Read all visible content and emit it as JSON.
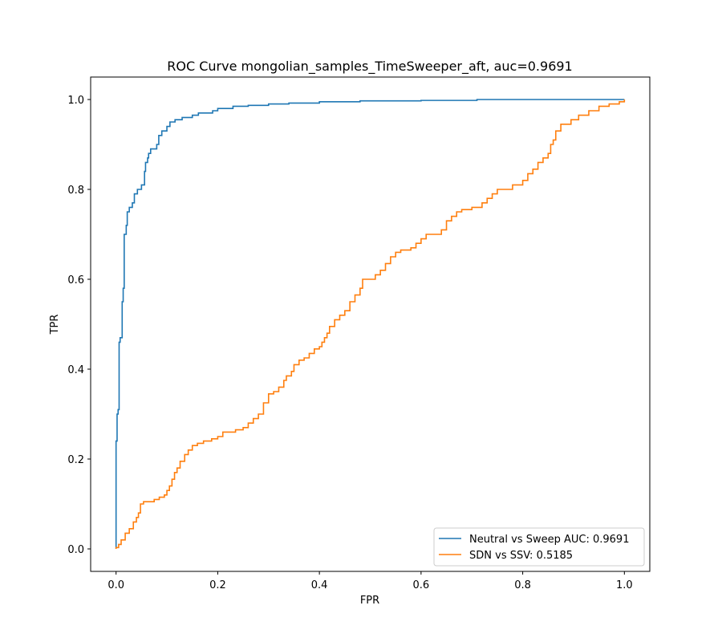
{
  "chart_data": {
    "type": "line",
    "title": "ROC Curve mongolian_samples_TimeSweeper_aft, auc=0.9691",
    "xlabel": "FPR",
    "ylabel": "TPR",
    "xlim": [
      -0.05,
      1.05
    ],
    "ylim": [
      -0.05,
      1.05
    ],
    "xticks": [
      0.0,
      0.2,
      0.4,
      0.6,
      0.8,
      1.0
    ],
    "yticks": [
      0.0,
      0.2,
      0.4,
      0.6,
      0.8,
      1.0
    ],
    "xtick_labels": [
      "0.0",
      "0.2",
      "0.4",
      "0.6",
      "0.8",
      "1.0"
    ],
    "ytick_labels": [
      "0.0",
      "0.2",
      "0.4",
      "0.6",
      "0.8",
      "1.0"
    ],
    "grid": false,
    "legend_position": "lower-right",
    "series": [
      {
        "name": "Neutral vs Sweep AUC: 0.9691",
        "color": "#1f77b4",
        "points": [
          [
            0.0,
            0.0
          ],
          [
            0.0,
            0.24
          ],
          [
            0.002,
            0.24
          ],
          [
            0.002,
            0.3
          ],
          [
            0.004,
            0.3
          ],
          [
            0.004,
            0.31
          ],
          [
            0.006,
            0.31
          ],
          [
            0.006,
            0.46
          ],
          [
            0.008,
            0.46
          ],
          [
            0.008,
            0.47
          ],
          [
            0.012,
            0.47
          ],
          [
            0.012,
            0.55
          ],
          [
            0.014,
            0.55
          ],
          [
            0.014,
            0.58
          ],
          [
            0.016,
            0.58
          ],
          [
            0.016,
            0.7
          ],
          [
            0.02,
            0.7
          ],
          [
            0.02,
            0.72
          ],
          [
            0.022,
            0.72
          ],
          [
            0.022,
            0.75
          ],
          [
            0.026,
            0.75
          ],
          [
            0.026,
            0.76
          ],
          [
            0.032,
            0.76
          ],
          [
            0.032,
            0.77
          ],
          [
            0.036,
            0.77
          ],
          [
            0.036,
            0.79
          ],
          [
            0.042,
            0.79
          ],
          [
            0.042,
            0.8
          ],
          [
            0.05,
            0.8
          ],
          [
            0.05,
            0.81
          ],
          [
            0.056,
            0.81
          ],
          [
            0.056,
            0.84
          ],
          [
            0.058,
            0.84
          ],
          [
            0.058,
            0.86
          ],
          [
            0.062,
            0.86
          ],
          [
            0.062,
            0.87
          ],
          [
            0.064,
            0.87
          ],
          [
            0.064,
            0.88
          ],
          [
            0.068,
            0.88
          ],
          [
            0.068,
            0.89
          ],
          [
            0.072,
            0.89
          ],
          [
            0.072,
            0.89
          ],
          [
            0.08,
            0.89
          ],
          [
            0.08,
            0.9
          ],
          [
            0.084,
            0.9
          ],
          [
            0.084,
            0.92
          ],
          [
            0.09,
            0.92
          ],
          [
            0.09,
            0.93
          ],
          [
            0.1,
            0.93
          ],
          [
            0.1,
            0.94
          ],
          [
            0.106,
            0.94
          ],
          [
            0.106,
            0.95
          ],
          [
            0.116,
            0.95
          ],
          [
            0.116,
            0.955
          ],
          [
            0.13,
            0.955
          ],
          [
            0.13,
            0.96
          ],
          [
            0.15,
            0.96
          ],
          [
            0.15,
            0.965
          ],
          [
            0.162,
            0.965
          ],
          [
            0.162,
            0.97
          ],
          [
            0.19,
            0.97
          ],
          [
            0.19,
            0.975
          ],
          [
            0.2,
            0.975
          ],
          [
            0.2,
            0.98
          ],
          [
            0.23,
            0.98
          ],
          [
            0.23,
            0.985
          ],
          [
            0.26,
            0.985
          ],
          [
            0.26,
            0.987
          ],
          [
            0.3,
            0.987
          ],
          [
            0.3,
            0.99
          ],
          [
            0.34,
            0.99
          ],
          [
            0.34,
            0.992
          ],
          [
            0.4,
            0.992
          ],
          [
            0.4,
            0.995
          ],
          [
            0.48,
            0.995
          ],
          [
            0.48,
            0.997
          ],
          [
            0.6,
            0.997
          ],
          [
            0.6,
            0.998
          ],
          [
            0.71,
            0.998
          ],
          [
            0.71,
            1.0
          ],
          [
            1.0,
            1.0
          ]
        ]
      },
      {
        "name": "SDN vs SSV: 0.5185",
        "color": "#ff7f0e",
        "points": [
          [
            0.0,
            0.0
          ],
          [
            0.0,
            0.003
          ],
          [
            0.005,
            0.003
          ],
          [
            0.005,
            0.01
          ],
          [
            0.01,
            0.01
          ],
          [
            0.01,
            0.02
          ],
          [
            0.018,
            0.02
          ],
          [
            0.018,
            0.035
          ],
          [
            0.026,
            0.035
          ],
          [
            0.026,
            0.045
          ],
          [
            0.034,
            0.045
          ],
          [
            0.034,
            0.06
          ],
          [
            0.04,
            0.06
          ],
          [
            0.04,
            0.07
          ],
          [
            0.044,
            0.07
          ],
          [
            0.044,
            0.08
          ],
          [
            0.048,
            0.08
          ],
          [
            0.048,
            0.1
          ],
          [
            0.054,
            0.1
          ],
          [
            0.054,
            0.105
          ],
          [
            0.075,
            0.105
          ],
          [
            0.075,
            0.11
          ],
          [
            0.085,
            0.11
          ],
          [
            0.085,
            0.115
          ],
          [
            0.095,
            0.115
          ],
          [
            0.095,
            0.12
          ],
          [
            0.1,
            0.12
          ],
          [
            0.1,
            0.13
          ],
          [
            0.105,
            0.13
          ],
          [
            0.105,
            0.14
          ],
          [
            0.11,
            0.14
          ],
          [
            0.11,
            0.155
          ],
          [
            0.115,
            0.155
          ],
          [
            0.115,
            0.17
          ],
          [
            0.12,
            0.17
          ],
          [
            0.12,
            0.18
          ],
          [
            0.126,
            0.18
          ],
          [
            0.126,
            0.195
          ],
          [
            0.135,
            0.195
          ],
          [
            0.135,
            0.21
          ],
          [
            0.142,
            0.21
          ],
          [
            0.142,
            0.22
          ],
          [
            0.15,
            0.22
          ],
          [
            0.15,
            0.23
          ],
          [
            0.16,
            0.23
          ],
          [
            0.16,
            0.235
          ],
          [
            0.172,
            0.235
          ],
          [
            0.172,
            0.24
          ],
          [
            0.188,
            0.24
          ],
          [
            0.188,
            0.245
          ],
          [
            0.2,
            0.245
          ],
          [
            0.2,
            0.25
          ],
          [
            0.21,
            0.25
          ],
          [
            0.21,
            0.26
          ],
          [
            0.235,
            0.26
          ],
          [
            0.235,
            0.265
          ],
          [
            0.25,
            0.265
          ],
          [
            0.25,
            0.27
          ],
          [
            0.26,
            0.27
          ],
          [
            0.26,
            0.28
          ],
          [
            0.27,
            0.28
          ],
          [
            0.27,
            0.29
          ],
          [
            0.28,
            0.29
          ],
          [
            0.28,
            0.3
          ],
          [
            0.29,
            0.3
          ],
          [
            0.29,
            0.325
          ],
          [
            0.3,
            0.325
          ],
          [
            0.3,
            0.345
          ],
          [
            0.31,
            0.345
          ],
          [
            0.31,
            0.35
          ],
          [
            0.32,
            0.35
          ],
          [
            0.32,
            0.36
          ],
          [
            0.33,
            0.36
          ],
          [
            0.33,
            0.375
          ],
          [
            0.335,
            0.375
          ],
          [
            0.335,
            0.385
          ],
          [
            0.345,
            0.385
          ],
          [
            0.345,
            0.395
          ],
          [
            0.35,
            0.395
          ],
          [
            0.35,
            0.41
          ],
          [
            0.36,
            0.41
          ],
          [
            0.36,
            0.42
          ],
          [
            0.37,
            0.42
          ],
          [
            0.37,
            0.425
          ],
          [
            0.38,
            0.425
          ],
          [
            0.38,
            0.435
          ],
          [
            0.39,
            0.435
          ],
          [
            0.39,
            0.445
          ],
          [
            0.4,
            0.445
          ],
          [
            0.4,
            0.45
          ],
          [
            0.405,
            0.45
          ],
          [
            0.405,
            0.46
          ],
          [
            0.41,
            0.46
          ],
          [
            0.41,
            0.47
          ],
          [
            0.415,
            0.47
          ],
          [
            0.415,
            0.48
          ],
          [
            0.42,
            0.48
          ],
          [
            0.42,
            0.495
          ],
          [
            0.43,
            0.495
          ],
          [
            0.43,
            0.51
          ],
          [
            0.44,
            0.51
          ],
          [
            0.44,
            0.52
          ],
          [
            0.45,
            0.52
          ],
          [
            0.45,
            0.53
          ],
          [
            0.46,
            0.53
          ],
          [
            0.46,
            0.55
          ],
          [
            0.47,
            0.55
          ],
          [
            0.47,
            0.565
          ],
          [
            0.48,
            0.565
          ],
          [
            0.48,
            0.58
          ],
          [
            0.485,
            0.58
          ],
          [
            0.485,
            0.6
          ],
          [
            0.5,
            0.6
          ],
          [
            0.5,
            0.6
          ],
          [
            0.51,
            0.6
          ],
          [
            0.51,
            0.61
          ],
          [
            0.52,
            0.61
          ],
          [
            0.52,
            0.62
          ],
          [
            0.53,
            0.62
          ],
          [
            0.53,
            0.635
          ],
          [
            0.54,
            0.635
          ],
          [
            0.54,
            0.65
          ],
          [
            0.55,
            0.65
          ],
          [
            0.55,
            0.66
          ],
          [
            0.56,
            0.66
          ],
          [
            0.56,
            0.665
          ],
          [
            0.58,
            0.665
          ],
          [
            0.58,
            0.67
          ],
          [
            0.59,
            0.67
          ],
          [
            0.59,
            0.68
          ],
          [
            0.6,
            0.68
          ],
          [
            0.6,
            0.69
          ],
          [
            0.61,
            0.69
          ],
          [
            0.61,
            0.7
          ],
          [
            0.64,
            0.7
          ],
          [
            0.64,
            0.71
          ],
          [
            0.65,
            0.71
          ],
          [
            0.65,
            0.73
          ],
          [
            0.66,
            0.73
          ],
          [
            0.66,
            0.74
          ],
          [
            0.67,
            0.74
          ],
          [
            0.67,
            0.75
          ],
          [
            0.68,
            0.75
          ],
          [
            0.68,
            0.755
          ],
          [
            0.7,
            0.755
          ],
          [
            0.7,
            0.76
          ],
          [
            0.72,
            0.76
          ],
          [
            0.72,
            0.77
          ],
          [
            0.73,
            0.77
          ],
          [
            0.73,
            0.78
          ],
          [
            0.74,
            0.78
          ],
          [
            0.74,
            0.79
          ],
          [
            0.75,
            0.79
          ],
          [
            0.75,
            0.8
          ],
          [
            0.78,
            0.8
          ],
          [
            0.78,
            0.81
          ],
          [
            0.8,
            0.81
          ],
          [
            0.8,
            0.82
          ],
          [
            0.81,
            0.82
          ],
          [
            0.81,
            0.835
          ],
          [
            0.82,
            0.835
          ],
          [
            0.82,
            0.845
          ],
          [
            0.83,
            0.845
          ],
          [
            0.83,
            0.86
          ],
          [
            0.84,
            0.86
          ],
          [
            0.84,
            0.87
          ],
          [
            0.85,
            0.87
          ],
          [
            0.85,
            0.88
          ],
          [
            0.855,
            0.88
          ],
          [
            0.855,
            0.9
          ],
          [
            0.86,
            0.9
          ],
          [
            0.86,
            0.91
          ],
          [
            0.865,
            0.91
          ],
          [
            0.865,
            0.93
          ],
          [
            0.875,
            0.93
          ],
          [
            0.875,
            0.945
          ],
          [
            0.895,
            0.945
          ],
          [
            0.895,
            0.955
          ],
          [
            0.91,
            0.955
          ],
          [
            0.91,
            0.965
          ],
          [
            0.93,
            0.965
          ],
          [
            0.93,
            0.975
          ],
          [
            0.95,
            0.975
          ],
          [
            0.95,
            0.985
          ],
          [
            0.97,
            0.985
          ],
          [
            0.97,
            0.99
          ],
          [
            0.99,
            0.99
          ],
          [
            0.99,
            0.995
          ],
          [
            1.0,
            0.995
          ],
          [
            1.0,
            1.0
          ]
        ]
      }
    ]
  }
}
